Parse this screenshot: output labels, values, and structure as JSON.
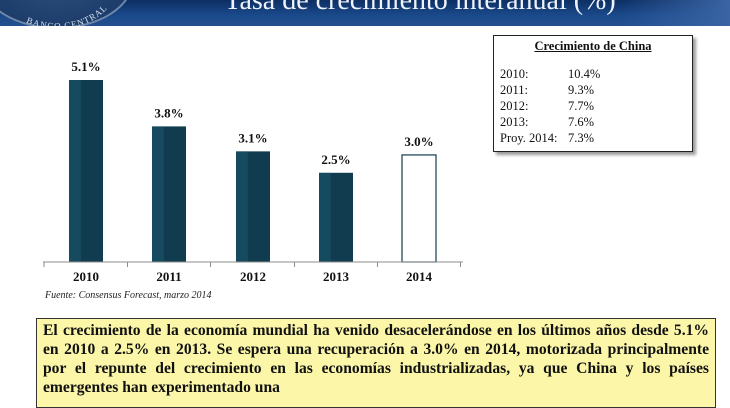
{
  "header": {
    "title": "Tasa de crecimiento interanual (%)",
    "seal_text": "BANCO CENTRAL"
  },
  "chart_data": {
    "type": "bar",
    "title": "",
    "xlabel": "",
    "ylabel": "",
    "categories": [
      "2010",
      "2011",
      "2012",
      "2013",
      "2014"
    ],
    "values": [
      5.1,
      3.8,
      3.1,
      2.5,
      3.0
    ],
    "value_labels": [
      "5.1%",
      "3.8%",
      "3.1%",
      "2.5%",
      "3.0%"
    ],
    "highlighted_forecast_category": "2014",
    "ylim": [
      0,
      5.1
    ],
    "grid": false,
    "colors": {
      "bar": "#113c4f",
      "bar_highlight": "#1d5a70",
      "forecast_fill": "#ffffff",
      "forecast_border": "#113c4f"
    }
  },
  "legend_box": {
    "title": "Crecimiento de China",
    "rows": [
      {
        "year": "2010:",
        "value": "10.4%"
      },
      {
        "year": "2011:",
        "value": "9.3%"
      },
      {
        "year": "2012:",
        "value": "7.7%"
      },
      {
        "year": "2013:",
        "value": "7.6%"
      },
      {
        "year": "Proy. 2014:",
        "value": "7.3%"
      }
    ]
  },
  "source_note": "Fuente: Consensus Forecast, marzo 2014",
  "summary": {
    "text": "El crecimiento de la economía mundial ha venido desacelerándose en los últimos años desde 5.1% en 2010 a 2.5% en 2013. Se espera una recuperación a 3.0% en 2014, motorizada principalmente por el repunte del crecimiento en las economías industrializadas, ya que China y los países emergentes han experimentado una"
  }
}
